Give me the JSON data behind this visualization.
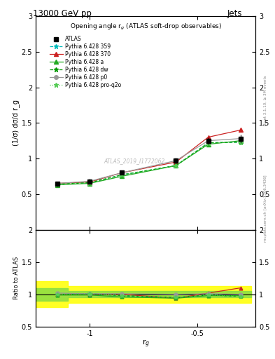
{
  "title_top": "13000 GeV pp",
  "title_right": "Jets",
  "plot_title": "Opening angle r$_g$ (ATLAS soft-drop observables)",
  "watermark": "ATLAS_2019_I1772062",
  "rivet_text": "Rivet 3.1.10, ≥ 3M events",
  "mcplots_text": "mcplots.cern.ch [arXiv:1306.3436]",
  "ylabel_main": "(1/σ) dσ/d r_g",
  "ylabel_ratio": "Ratio to ATLAS",
  "xlabel": "r$_g$",
  "xlim": [
    -1.25,
    -0.23
  ],
  "ylim_main": [
    0.0,
    3.0
  ],
  "ylim_ratio": [
    0.5,
    2.0
  ],
  "x_data": [
    -1.15,
    -1.0,
    -0.85,
    -0.6,
    -0.45,
    -0.3
  ],
  "atlas_y": [
    0.65,
    0.68,
    0.8,
    0.97,
    1.25,
    1.28
  ],
  "atlas_yerr": [
    0.03,
    0.03,
    0.03,
    0.04,
    0.05,
    0.06
  ],
  "pythia_359_y": [
    0.64,
    0.66,
    0.77,
    0.9,
    1.22,
    1.23
  ],
  "pythia_370_y": [
    0.65,
    0.67,
    0.8,
    0.95,
    1.3,
    1.4
  ],
  "pythia_a_y": [
    0.63,
    0.65,
    0.75,
    0.9,
    1.2,
    1.25
  ],
  "pythia_dw_y": [
    0.64,
    0.66,
    0.77,
    0.9,
    1.22,
    1.23
  ],
  "pythia_p0_y": [
    0.65,
    0.68,
    0.8,
    0.97,
    1.25,
    1.28
  ],
  "pythia_proq2o_y": [
    0.64,
    0.66,
    0.77,
    0.9,
    1.22,
    1.23
  ],
  "ratio_359_y": [
    1.0,
    1.01,
    0.98,
    0.95,
    0.99,
    0.97
  ],
  "ratio_370_y": [
    1.0,
    1.0,
    1.0,
    0.94,
    1.02,
    1.1
  ],
  "ratio_a_y": [
    0.99,
    0.99,
    0.96,
    0.94,
    0.98,
    0.98
  ],
  "ratio_dw_y": [
    1.0,
    1.01,
    0.98,
    0.95,
    0.99,
    0.97
  ],
  "ratio_p0_y": [
    1.02,
    1.01,
    1.01,
    1.0,
    1.01,
    1.0
  ],
  "ratio_proq2o_y": [
    1.0,
    1.01,
    0.98,
    0.95,
    0.99,
    0.97
  ],
  "color_359": "#00bbbb",
  "color_370": "#cc2222",
  "color_a": "#22aa22",
  "color_dw": "#009900",
  "color_p0": "#999999",
  "color_proq2o": "#55cc55"
}
